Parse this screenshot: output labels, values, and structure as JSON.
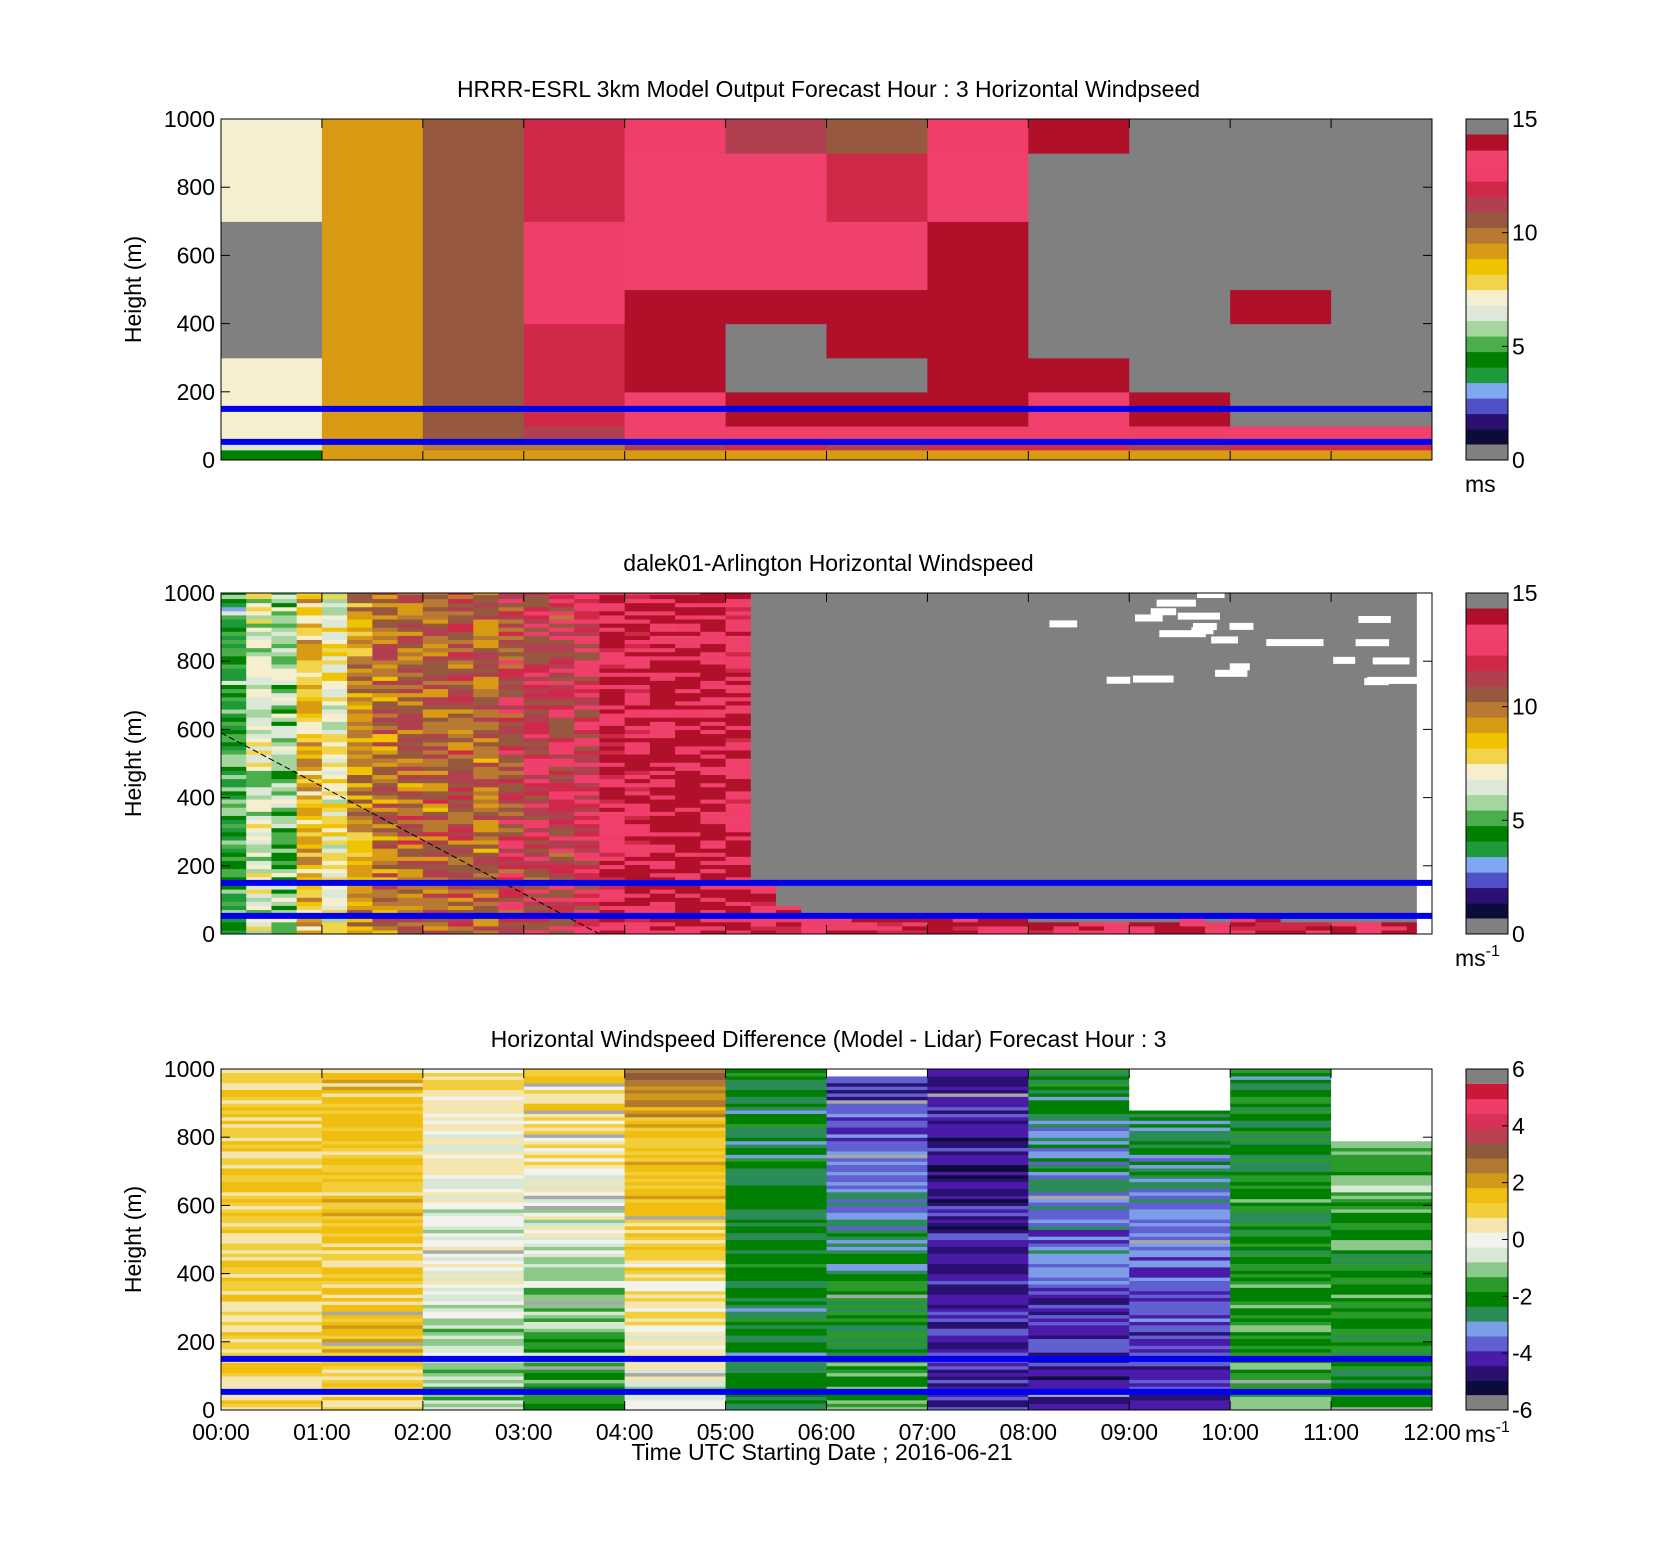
{
  "figure": {
    "xlabel": "Time UTC  Starting Date ; 2016-06-21",
    "x_tick_labels": [
      "00:00",
      "01:00",
      "02:00",
      "03:00",
      "04:00",
      "05:00",
      "06:00",
      "07:00",
      "08:00",
      "09:00",
      "10:00",
      "11:00",
      "12:00"
    ]
  },
  "chart_data": [
    {
      "type": "heatmap",
      "title": "HRRR-ESRL 3km Model Output   Forecast Hour : 3 Horizontal Windpseed",
      "xlabel": "",
      "ylabel": "Height (m)",
      "xlim": [
        0,
        12
      ],
      "ylim": [
        0,
        1000
      ],
      "y_ticks": [
        0,
        200,
        400,
        600,
        800,
        1000
      ],
      "colorbar": {
        "range": [
          0,
          15
        ],
        "ticks": [
          0,
          5,
          10,
          15
        ],
        "unit": "ms"
      },
      "colormap": "wind",
      "levels": [
        {
          "h0": 0,
          "h1": 30
        },
        {
          "h0": 30,
          "h1": 60
        },
        {
          "h0": 60,
          "h1": 100
        },
        {
          "h0": 100,
          "h1": 200
        },
        {
          "h0": 200,
          "h1": 300
        },
        {
          "h0": 300,
          "h1": 400
        },
        {
          "h0": 400,
          "h1": 500
        },
        {
          "h0": 500,
          "h1": 700
        },
        {
          "h0": 700,
          "h1": 900
        },
        {
          "h0": 900,
          "h1": 1000
        }
      ],
      "columns": [
        {
          "time": "00:00",
          "values": [
            4.0,
            6.0,
            7.0,
            7.0,
            7.0,
            null,
            null,
            null,
            7.0,
            7.0
          ]
        },
        {
          "time": "01:00",
          "values": [
            9.0,
            9.0,
            9.0,
            9.0,
            9.0,
            9.0,
            9.0,
            9.0,
            9.0,
            9.0
          ]
        },
        {
          "time": "02:00",
          "values": [
            9.0,
            10.0,
            11.0,
            11.0,
            11.0,
            11.0,
            11.0,
            11.0,
            11.0,
            10.5
          ]
        },
        {
          "time": "03:00",
          "values": [
            9.0,
            10.0,
            11.5,
            12.0,
            12.5,
            12.5,
            13.0,
            13.0,
            12.0,
            12.0
          ]
        },
        {
          "time": "04:00",
          "values": [
            9.5,
            11.5,
            13.5,
            14.0,
            14.5,
            14.5,
            14.5,
            14.0,
            13.5,
            13.0
          ]
        },
        {
          "time": "05:00",
          "values": [
            9.5,
            12.0,
            13.5,
            14.5,
            null,
            null,
            15.0,
            14.0,
            13.5,
            11.5
          ]
        },
        {
          "time": "06:00",
          "values": [
            9.5,
            11.5,
            13.5,
            15.0,
            null,
            15.0,
            14.5,
            13.5,
            12.0,
            11.0
          ]
        },
        {
          "time": "07:00",
          "values": [
            9.5,
            12.0,
            13.5,
            14.5,
            14.5,
            15.0,
            15.0,
            14.5,
            14.0,
            13.0
          ]
        },
        {
          "time": "08:00",
          "values": [
            9.5,
            12.0,
            13.5,
            14.0,
            14.5,
            null,
            null,
            null,
            null,
            15.0
          ]
        },
        {
          "time": "09:00",
          "values": [
            9.0,
            11.5,
            13.0,
            15.0,
            null,
            null,
            null,
            null,
            null,
            null
          ]
        },
        {
          "time": "10:00",
          "values": [
            9.0,
            12.0,
            13.5,
            null,
            null,
            null,
            15.0,
            null,
            null,
            null
          ]
        },
        {
          "time": "11:00",
          "values": [
            9.0,
            12.0,
            14.0,
            null,
            null,
            null,
            null,
            null,
            null,
            null
          ]
        }
      ],
      "reference_lines_m": [
        53,
        150
      ]
    },
    {
      "type": "heatmap",
      "title": "dalek01-Arlington  Horizontal Windspeed",
      "xlabel": "",
      "ylabel": "Height (m)",
      "xlim": [
        0,
        12
      ],
      "ylim": [
        0,
        1000
      ],
      "y_ticks": [
        0,
        200,
        400,
        600,
        800,
        1000
      ],
      "colorbar": {
        "range": [
          0,
          15
        ],
        "ticks": [
          0,
          5,
          10,
          15
        ],
        "unit": "ms-1"
      },
      "colormap": "wind",
      "column_step_h": 0.25,
      "column_values": [
        4.5,
        6.5,
        5.5,
        8.5,
        7.0,
        9.5,
        10.0,
        10.5,
        10.5,
        11.0,
        10.5,
        11.5,
        12.0,
        12.0,
        12.5,
        14.0,
        14.0,
        14.5,
        14.5,
        14.5
      ],
      "fill_value_after_column": 14.0,
      "missing_ceiling_by_column_m": [
        1000,
        1000,
        1000,
        1000,
        1000,
        1000,
        1000,
        1000,
        1000,
        1000,
        1000,
        1000,
        1000,
        1000,
        1000,
        1000,
        1000,
        1000,
        1000,
        1000,
        1000,
        150,
        80,
        60,
        50,
        40,
        40,
        40,
        40,
        40,
        40,
        40,
        30,
        30,
        30,
        30,
        30,
        30,
        40,
        30,
        40,
        40,
        30,
        30,
        30,
        30,
        30,
        30
      ],
      "diagonal_reference_line": [
        [
          0,
          590
        ],
        [
          3.75,
          0
        ]
      ],
      "reference_lines_m": [
        53,
        150
      ]
    },
    {
      "type": "heatmap",
      "title": "Horizontal Windspeed Difference (Model - Lidar) Forecast Hour : 3",
      "xlabel": "Time UTC  Starting Date ; 2016-06-21",
      "ylabel": "Height (m)",
      "xlim": [
        0,
        12
      ],
      "ylim": [
        0,
        1000
      ],
      "y_ticks": [
        0,
        200,
        400,
        600,
        800,
        1000
      ],
      "colorbar": {
        "range": [
          -6,
          6
        ],
        "ticks": [
          -6,
          -4,
          -2,
          0,
          2,
          4,
          6
        ],
        "unit": "ms-1"
      },
      "colormap": "diff",
      "column_profiles": [
        {
          "time": "00:00",
          "top_m": 1000,
          "base": 1.2,
          "top": 1.2
        },
        {
          "time": "01:00",
          "top_m": 1000,
          "base": 1.3,
          "top": 1.5
        },
        {
          "time": "02:00",
          "top_m": 1000,
          "base": -1.0,
          "top": 0.5
        },
        {
          "time": "03:00",
          "top_m": 1000,
          "base": -2.0,
          "top": 1.2
        },
        {
          "time": "04:00",
          "top_m": 1000,
          "base": -0.5,
          "top": 2.5
        },
        {
          "time": "05:00",
          "top_m": 1000,
          "base": -2.5,
          "top": -2.5
        },
        {
          "time": "06:00",
          "top_m": 980,
          "base": -1.5,
          "top": -4.5
        },
        {
          "time": "07:00",
          "top_m": 1000,
          "base": -4.5,
          "top": -5.0
        },
        {
          "time": "08:00",
          "top_m": 1000,
          "base": -5.0,
          "top": -2.5
        },
        {
          "time": "09:00",
          "top_m": 880,
          "base": -5.0,
          "top": -2.5
        },
        {
          "time": "10:00",
          "top_m": 1000,
          "base": -1.5,
          "top": -2.5
        },
        {
          "time": "11:00",
          "top_m": 790,
          "base": -2.5,
          "top": -1.0
        }
      ],
      "reference_lines_m": [
        53,
        150
      ]
    }
  ],
  "colors": {
    "reference_line": "#0000ee",
    "missing": "#808080",
    "wind_scale": [
      "#0c0c3a",
      "#2a1070",
      "#5050c8",
      "#80a8f0",
      "#1e9a3a",
      "#008000",
      "#4aae4a",
      "#a6d6a0",
      "#dde8d8",
      "#f5efd0",
      "#f2d44a",
      "#efc300",
      "#d99a14",
      "#b87a32",
      "#96583e",
      "#b04050",
      "#d02848",
      "#ef3e6a",
      "#f0406c",
      "#b0102a"
    ],
    "diff_scale": [
      "#0c0c3a",
      "#2a1070",
      "#4a1aa8",
      "#6060d0",
      "#7c9ee8",
      "#2c8c58",
      "#008000",
      "#2a9a2a",
      "#8cc88a",
      "#d8e8d4",
      "#f2f2ee",
      "#f5e6b0",
      "#f2cf3a",
      "#efbe10",
      "#d09a18",
      "#b07830",
      "#8c5a3c",
      "#b84050",
      "#d83058",
      "#ee3e66",
      "#cc1838"
    ]
  }
}
